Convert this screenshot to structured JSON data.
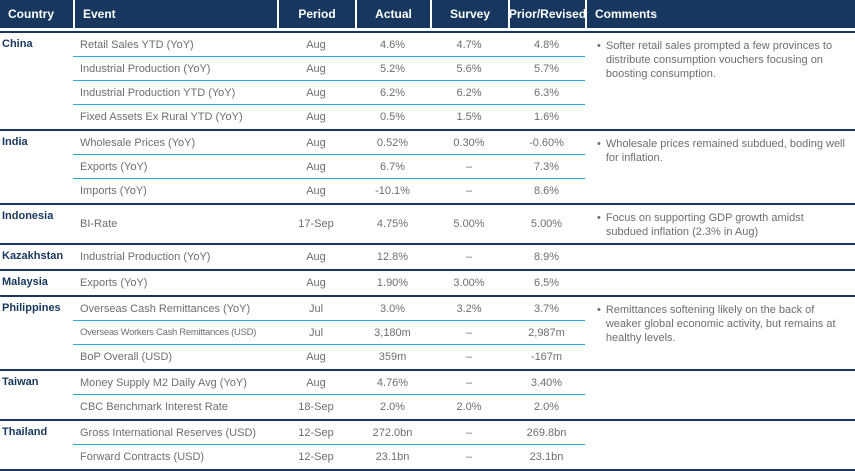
{
  "colors": {
    "navy": "#17375E",
    "cyan": "#29ABE2",
    "gray": "#6D6E71",
    "white": "#FFFFFF"
  },
  "bullet": "•",
  "header": {
    "columns": [
      {
        "label": "Country"
      },
      {
        "label": "Event"
      },
      {
        "label": "Period"
      },
      {
        "label": "Actual"
      },
      {
        "label": "Survey"
      },
      {
        "label": "Prior/Revised"
      },
      {
        "label": "Comments"
      }
    ]
  },
  "groups": [
    {
      "country": "China",
      "comment": "Softer retail sales prompted a few provinces to distribute consumption vouchers focusing on boosting consumption.",
      "rows": [
        {
          "event": "Retail Sales YTD (YoY)",
          "period": "Aug",
          "actual": "4.6%",
          "survey": "4.7%",
          "prior": "4.8%"
        },
        {
          "event": "Industrial Production (YoY)",
          "period": "Aug",
          "actual": "5.2%",
          "survey": "5.6%",
          "prior": "5.7%"
        },
        {
          "event": "Industrial Production YTD (YoY)",
          "period": "Aug",
          "actual": "6.2%",
          "survey": "6.2%",
          "prior": "6.3%"
        },
        {
          "event": "Fixed Assets Ex Rural YTD (YoY)",
          "period": "Aug",
          "actual": "0.5%",
          "survey": "1.5%",
          "prior": "1.6%"
        }
      ]
    },
    {
      "country": "India",
      "comment": "Wholesale prices remained subdued, boding well for inflation.",
      "rows": [
        {
          "event": "Wholesale Prices (YoY)",
          "period": "Aug",
          "actual": "0.52%",
          "survey": "0.30%",
          "prior": "-0.60%"
        },
        {
          "event": "Exports (YoY)",
          "period": "Aug",
          "actual": "6.7%",
          "survey": "–",
          "prior": "7.3%"
        },
        {
          "event": "Imports (YoY)",
          "period": "Aug",
          "actual": "-10.1%",
          "survey": "–",
          "prior": "8.6%"
        }
      ]
    },
    {
      "country": "Indonesia",
      "comment": "Focus on supporting GDP growth amidst subdued inflation (2.3% in Aug)",
      "rows": [
        {
          "event": "BI-Rate",
          "period": "17-Sep",
          "actual": "4.75%",
          "survey": "5.00%",
          "prior": "5.00%"
        }
      ]
    },
    {
      "country": "Kazakhstan",
      "comment": "",
      "rows": [
        {
          "event": "Industrial Production (YoY)",
          "period": "Aug",
          "actual": "12.8%",
          "survey": "–",
          "prior": "8.9%"
        }
      ]
    },
    {
      "country": "Malaysia",
      "comment": "",
      "rows": [
        {
          "event": "Exports (YoY)",
          "period": "Aug",
          "actual": "1.90%",
          "survey": "3.00%",
          "prior": "6.5%"
        }
      ]
    },
    {
      "country": "Philippines",
      "comment": "Remittances softening likely on the back of weaker global economic activity, but remains at healthy levels.",
      "rows": [
        {
          "event": "Overseas Cash Remittances (YoY)",
          "period": "Jul",
          "actual": "3.0%",
          "survey": "3.2%",
          "prior": "3.7%"
        },
        {
          "event": "Overseas Workers Cash Remittances (USD)",
          "period": "Jul",
          "actual": "3,180m",
          "survey": "–",
          "prior": "2,987m"
        },
        {
          "event": "BoP Overall (USD)",
          "period": "Aug",
          "actual": "359m",
          "survey": "–",
          "prior": "-167m"
        }
      ]
    },
    {
      "country": "Taiwan",
      "comment": "",
      "rows": [
        {
          "event": "Money Supply M2 Daily Avg (YoY)",
          "period": "Aug",
          "actual": "4.76%",
          "survey": "–",
          "prior": "3.40%"
        },
        {
          "event": "CBC Benchmark Interest Rate",
          "period": "18-Sep",
          "actual": "2.0%",
          "survey": "2.0%",
          "prior": "2.0%"
        }
      ]
    },
    {
      "country": "Thailand",
      "comment": "",
      "rows": [
        {
          "event": "Gross International Reserves (USD)",
          "period": "12-Sep",
          "actual": "272.0bn",
          "survey": "–",
          "prior": "269.8bn"
        },
        {
          "event": "Forward Contracts (USD)",
          "period": "12-Sep",
          "actual": "23.1bn",
          "survey": "–",
          "prior": "23.1bn"
        }
      ]
    }
  ]
}
